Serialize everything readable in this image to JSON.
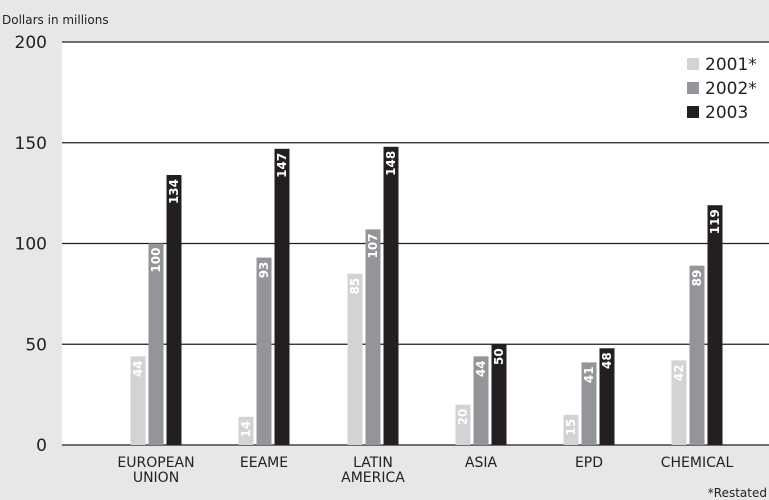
{
  "chart_data": {
    "type": "bar",
    "unit_label": "Dollars in millions",
    "categories": [
      [
        "EUROPEAN",
        "UNION"
      ],
      [
        "EEAME"
      ],
      [
        "LATIN",
        "AMERICA"
      ],
      [
        "ASIA"
      ],
      [
        "EPD"
      ],
      [
        "CHEMICAL"
      ]
    ],
    "series": [
      {
        "name": "2001*",
        "color": "#d1d3d4",
        "values": [
          44,
          14,
          85,
          20,
          15,
          42
        ]
      },
      {
        "name": "2002*",
        "color": "#939598",
        "values": [
          100,
          93,
          107,
          44,
          41,
          89
        ]
      },
      {
        "name": "2003",
        "color": "#231f20",
        "values": [
          134,
          147,
          148,
          50,
          48,
          119
        ]
      }
    ],
    "yticks": [
      0,
      50,
      100,
      150,
      200
    ],
    "ylim": [
      0,
      200
    ],
    "grid": true,
    "legend_position": "top-right",
    "footnote": "*Restated",
    "colors": {
      "background": "#e6e7e8",
      "plot_background": "#ffffff",
      "gridline": "#231f20"
    }
  }
}
